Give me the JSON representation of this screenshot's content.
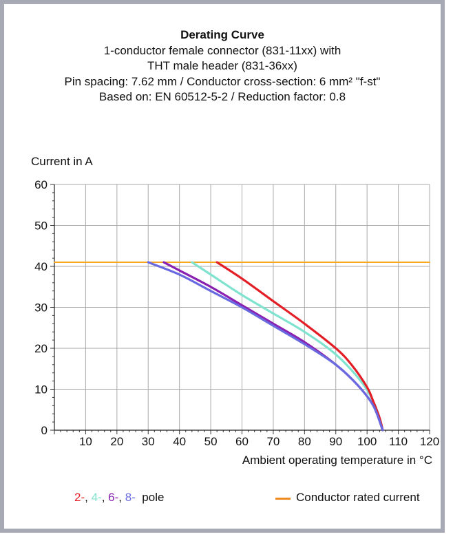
{
  "title_lines": [
    "Derating Curve",
    "1-conductor female connector (831-11xx) with",
    "THT male header (831-36xx)",
    "Pin spacing: 7.62 mm / Conductor cross-section: 6 mm² \"f-st\"",
    "Based on: EN 60512-5-2 / Reduction factor: 0.8"
  ],
  "chart_data": {
    "type": "line",
    "ylabel": "Current in A",
    "xlabel": "Ambient operating temperature in °C",
    "xlim": [
      0,
      120
    ],
    "ylim": [
      0,
      60
    ],
    "x_ticks": [
      10,
      20,
      30,
      40,
      50,
      60,
      70,
      80,
      90,
      100,
      110,
      120
    ],
    "y_ticks": [
      0,
      10,
      20,
      30,
      40,
      50,
      60
    ],
    "grid": true,
    "series": [
      {
        "name": "2-",
        "color": "#e41e26",
        "x": [
          52,
          60,
          70,
          80,
          90,
          95,
          100,
          102,
          104,
          105
        ],
        "y": [
          41,
          37,
          31.5,
          26,
          20,
          16,
          10.5,
          7,
          3,
          0
        ]
      },
      {
        "name": "4-",
        "color": "#7fe3cf",
        "x": [
          44,
          50,
          60,
          70,
          80,
          90,
          98,
          102,
          104,
          105
        ],
        "y": [
          41,
          38,
          33,
          28.5,
          24,
          18.5,
          12,
          7,
          3,
          0
        ]
      },
      {
        "name": "6-",
        "color": "#8a1fb0",
        "x": [
          35,
          40,
          50,
          60,
          70,
          80,
          90,
          97,
          102,
          105
        ],
        "y": [
          41,
          39,
          35,
          30.5,
          26,
          21.5,
          16,
          11,
          6,
          0
        ]
      },
      {
        "name": "8-",
        "color": "#6a6ae0",
        "x": [
          30,
          40,
          50,
          60,
          70,
          80,
          90,
          97,
          102,
          105
        ],
        "y": [
          41,
          38,
          34,
          30,
          25.5,
          21,
          16,
          11,
          6,
          0
        ]
      },
      {
        "name": "Conductor rated current",
        "color": "#f5a623",
        "x": [
          0,
          120
        ],
        "y": [
          41,
          41
        ]
      }
    ]
  },
  "legend": {
    "poles": [
      {
        "text": "2-",
        "color": "#e41e26"
      },
      {
        "text": ", ",
        "color": "#111111"
      },
      {
        "text": "4-",
        "color": "#7fe3cf"
      },
      {
        "text": ", ",
        "color": "#111111"
      },
      {
        "text": "6-",
        "color": "#8a1fb0"
      },
      {
        "text": ", ",
        "color": "#111111"
      },
      {
        "text": "8-",
        "color": "#6a6ae0"
      }
    ],
    "pole_suffix": "  pole",
    "rated_label": "Conductor rated current",
    "rated_color": "#f08a1c"
  }
}
